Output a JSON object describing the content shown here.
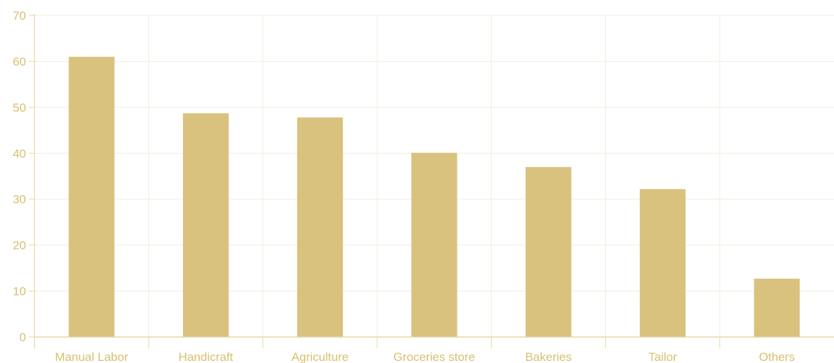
{
  "colors": {
    "bar": "#d9c27e",
    "grid": "#f3eddc",
    "axis": "#e7d7a4",
    "tick_text": "#d8c06f"
  },
  "chart_data": {
    "type": "bar",
    "title": "",
    "xlabel": "",
    "ylabel": "",
    "categories": [
      "Manual Labor",
      "Handicraft",
      "Agriculture",
      "Groceries store",
      "Bakeries",
      "Tailor",
      "Others"
    ],
    "values": [
      61,
      48.7,
      47.8,
      40.1,
      37,
      32.2,
      12.7
    ],
    "ylim": [
      0,
      70
    ],
    "yticks": [
      0,
      10,
      20,
      30,
      40,
      50,
      60,
      70
    ],
    "grid": true,
    "legend": "none"
  }
}
